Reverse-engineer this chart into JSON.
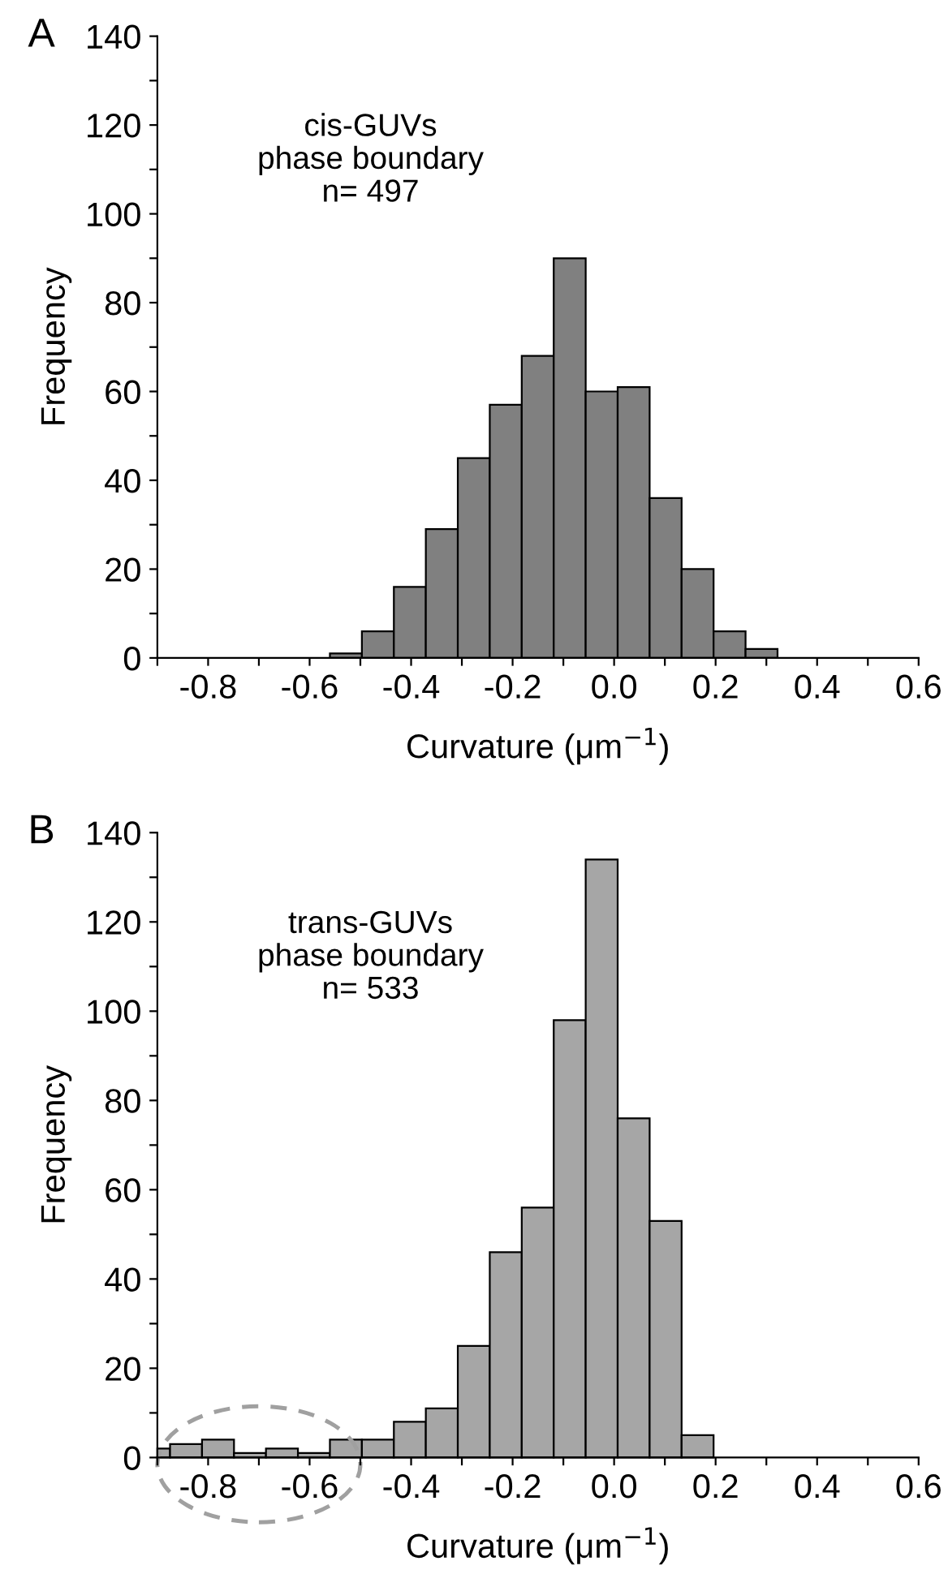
{
  "chart_data": [
    {
      "type": "histogram",
      "title": "A",
      "xlabel": "Curvature (μm$^{−1}$)",
      "ylabel": "Frequency",
      "annotations": [
        "cis-GUVs\nphase boundary\nn= 497"
      ],
      "bins": [
        -0.56,
        -0.497,
        -0.434,
        -0.371,
        -0.308,
        -0.245,
        -0.182,
        -0.119,
        -0.056,
        0.007,
        0.07,
        0.133,
        0.196,
        0.259,
        0.322
      ],
      "values": [
        1,
        6,
        16,
        29,
        45,
        57,
        68,
        90,
        60,
        61,
        36,
        20,
        6,
        2
      ],
      "color": "#808080",
      "xlim": [
        -0.9,
        0.6
      ],
      "ylim": [
        0,
        140
      ],
      "xticks": [
        {
          "value": -0.9,
          "label": null
        },
        -0.8,
        {
          "value": -0.7,
          "label": null
        },
        -0.6,
        {
          "value": -0.5,
          "label": null
        },
        -0.4,
        {
          "value": -0.3,
          "label": null
        },
        -0.2,
        {
          "value": -0.1,
          "label": null
        },
        {
          "value": 0,
          "label": "0.0"
        },
        {
          "value": 0.1,
          "label": null
        },
        0.2,
        {
          "value": 0.3,
          "label": null
        },
        0.4,
        {
          "value": 0.5,
          "label": null
        },
        0.6
      ],
      "yticks": [
        0,
        {
          "value": 10,
          "label": null
        },
        20,
        {
          "value": 30,
          "label": null
        },
        40,
        {
          "value": 50,
          "label": null
        },
        60,
        {
          "value": 70,
          "label": null
        },
        80,
        {
          "value": 90,
          "label": null
        },
        100,
        {
          "value": 110,
          "label": null
        },
        120,
        {
          "value": 130,
          "label": null
        },
        140
      ],
      "grid": false,
      "legend": false
    },
    {
      "type": "histogram",
      "title": "B",
      "xlabel": "Curvature (μm$^{−1}$)",
      "ylabel": "Frequency",
      "annotations": [
        "trans-GUVs\nphase boundary\nn= 533"
      ],
      "bins": [
        -0.9,
        -0.875,
        -0.812,
        -0.749,
        -0.686,
        -0.623,
        -0.56,
        -0.497,
        -0.434,
        -0.371,
        -0.308,
        -0.245,
        -0.182,
        -0.119,
        -0.056,
        0.007,
        0.07,
        0.133,
        0.196
      ],
      "values": [
        2,
        3,
        4,
        1,
        2,
        1,
        4,
        4,
        8,
        11,
        25,
        46,
        56,
        98,
        134,
        76,
        53,
        5
      ],
      "color": "#a6a6a6",
      "xlim": [
        -0.9,
        0.6
      ],
      "ylim": [
        0,
        140
      ],
      "xticks": [
        {
          "value": -0.9,
          "label": null
        },
        -0.8,
        {
          "value": -0.7,
          "label": null
        },
        -0.6,
        {
          "value": -0.5,
          "label": null
        },
        -0.4,
        {
          "value": -0.3,
          "label": null
        },
        -0.2,
        {
          "value": -0.1,
          "label": null
        },
        {
          "value": 0,
          "label": "0.0"
        },
        {
          "value": 0.1,
          "label": null
        },
        0.2,
        {
          "value": 0.3,
          "label": null
        },
        0.4,
        {
          "value": 0.5,
          "label": null
        },
        0.6
      ],
      "yticks": [
        0,
        {
          "value": 10,
          "label": null
        },
        20,
        {
          "value": 30,
          "label": null
        },
        40,
        {
          "value": 50,
          "label": null
        },
        60,
        {
          "value": 70,
          "label": null
        },
        80,
        {
          "value": 90,
          "label": null
        },
        100,
        {
          "value": 110,
          "label": null
        },
        120,
        {
          "value": 130,
          "label": null
        },
        140
      ],
      "grid": false,
      "legend": false
    }
  ]
}
